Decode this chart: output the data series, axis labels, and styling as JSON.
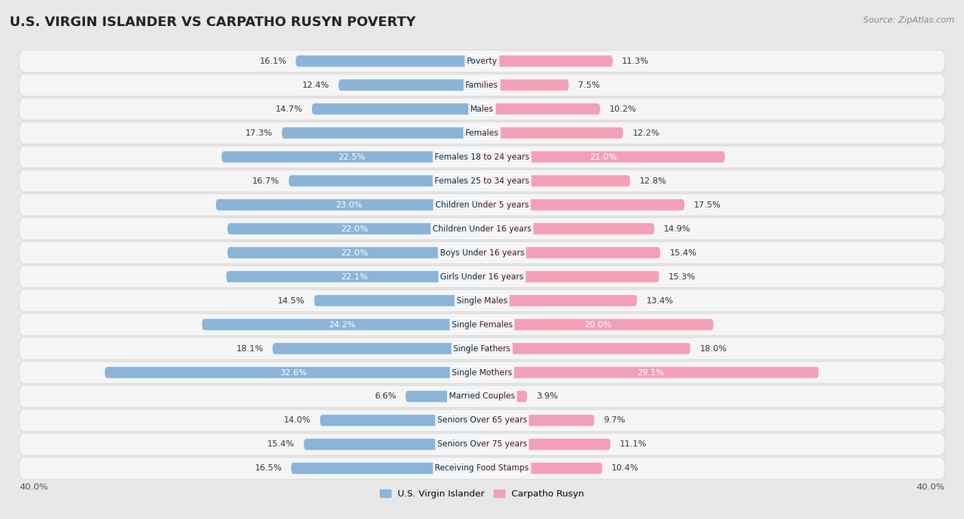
{
  "title": "U.S. VIRGIN ISLANDER VS CARPATHO RUSYN POVERTY",
  "source": "Source: ZipAtlas.com",
  "categories": [
    "Poverty",
    "Families",
    "Males",
    "Females",
    "Females 18 to 24 years",
    "Females 25 to 34 years",
    "Children Under 5 years",
    "Children Under 16 years",
    "Boys Under 16 years",
    "Girls Under 16 years",
    "Single Males",
    "Single Females",
    "Single Fathers",
    "Single Mothers",
    "Married Couples",
    "Seniors Over 65 years",
    "Seniors Over 75 years",
    "Receiving Food Stamps"
  ],
  "left_values": [
    16.1,
    12.4,
    14.7,
    17.3,
    22.5,
    16.7,
    23.0,
    22.0,
    22.0,
    22.1,
    14.5,
    24.2,
    18.1,
    32.6,
    6.6,
    14.0,
    15.4,
    16.5
  ],
  "right_values": [
    11.3,
    7.5,
    10.2,
    12.2,
    21.0,
    12.8,
    17.5,
    14.9,
    15.4,
    15.3,
    13.4,
    20.0,
    18.0,
    29.1,
    3.9,
    9.7,
    11.1,
    10.4
  ],
  "left_color": "#8ab4d8",
  "right_color": "#f2a0b8",
  "left_label": "U.S. Virgin Islander",
  "right_label": "Carpatho Rusyn",
  "axis_max": 40.0,
  "background_color": "#e8e8e8",
  "row_bg_color": "#f5f5f5",
  "label_inside_threshold": 19.5,
  "title_fontsize": 14,
  "source_fontsize": 9,
  "tick_fontsize": 9.5,
  "bar_label_fontsize": 9,
  "category_fontsize": 8.5
}
